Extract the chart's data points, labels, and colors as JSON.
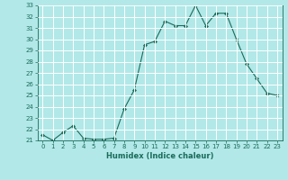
{
  "xlabel": "Humidex (Indice chaleur)",
  "x": [
    0,
    1,
    2,
    3,
    4,
    5,
    6,
    7,
    8,
    9,
    10,
    11,
    12,
    13,
    14,
    15,
    16,
    17,
    18,
    19,
    20,
    21,
    22,
    23
  ],
  "y": [
    21.5,
    21.0,
    21.7,
    22.3,
    21.2,
    21.1,
    21.1,
    21.2,
    23.8,
    25.5,
    29.5,
    29.8,
    31.6,
    31.2,
    31.2,
    33.0,
    31.2,
    32.3,
    32.3,
    30.0,
    27.8,
    26.5,
    25.2,
    25.0
  ],
  "line_color": "#1a6b5a",
  "marker": "D",
  "marker_size": 2,
  "bg_color": "#b2e8e8",
  "grid_color": "#ffffff",
  "ylim": [
    21,
    33
  ],
  "xlim": [
    -0.5,
    23.5
  ],
  "yticks": [
    21,
    22,
    23,
    24,
    25,
    26,
    27,
    28,
    29,
    30,
    31,
    32,
    33
  ],
  "xticks": [
    0,
    1,
    2,
    3,
    4,
    5,
    6,
    7,
    8,
    9,
    10,
    11,
    12,
    13,
    14,
    15,
    16,
    17,
    18,
    19,
    20,
    21,
    22,
    23
  ],
  "tick_fontsize": 5.0,
  "xlabel_fontsize": 6.0,
  "linewidth": 0.8
}
